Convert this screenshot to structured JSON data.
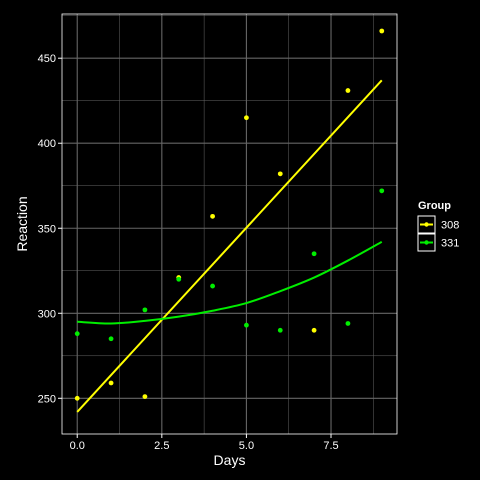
{
  "chart_data": {
    "type": "scatter",
    "title": "",
    "xlabel": "Days",
    "ylabel": "Reaction",
    "xlim": [
      -0.45,
      9.45
    ],
    "ylim": [
      229,
      476
    ],
    "xticks": [
      0,
      2.5,
      5,
      7.5
    ],
    "xtick_labels": [
      "0.0",
      "2.5",
      "5.0",
      "7.5"
    ],
    "yticks": [
      250,
      300,
      350,
      400,
      450
    ],
    "ytick_labels": [
      "250",
      "300",
      "350",
      "400",
      "450"
    ],
    "grid": true,
    "legend": {
      "title": "Group",
      "position": "right"
    },
    "colors": {
      "background": "#000000",
      "grid": "#666666",
      "axis": "#ffffff",
      "text": "#ffffff"
    },
    "series": [
      {
        "name": "308",
        "color": "#ffff00",
        "x": [
          0,
          1,
          2,
          3,
          4,
          5,
          6,
          7,
          8,
          9
        ],
        "y": [
          250,
          259,
          251,
          321,
          357,
          415,
          382,
          290,
          431,
          466
        ],
        "fit": {
          "x": [
            0,
            9
          ],
          "y": [
            242,
            437
          ]
        }
      },
      {
        "name": "331",
        "color": "#00ee00",
        "x": [
          0,
          1,
          2,
          3,
          4,
          5,
          6,
          7,
          8,
          9
        ],
        "y": [
          288,
          285,
          302,
          320,
          316,
          293,
          290,
          335,
          294,
          372
        ],
        "fit": {
          "x": [
            0,
            1,
            2,
            3,
            4,
            5,
            6,
            7,
            8,
            9
          ],
          "y": [
            295,
            294,
            295.5,
            298,
            301.5,
            306,
            313,
            321,
            331,
            342
          ]
        }
      }
    ]
  }
}
